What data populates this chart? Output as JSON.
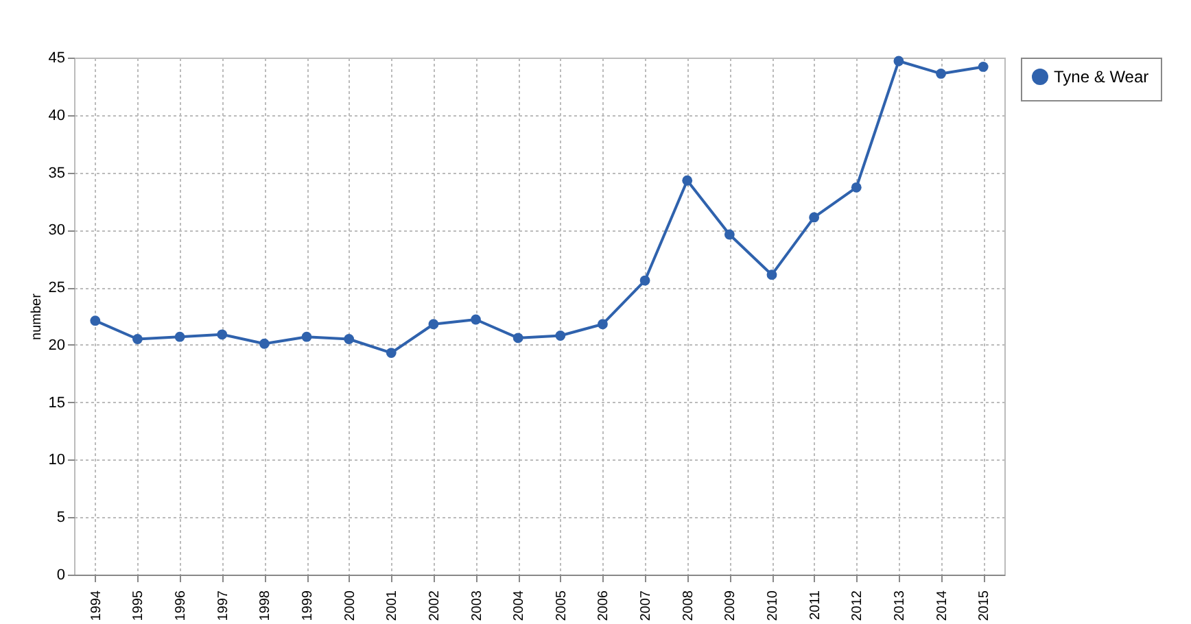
{
  "chart_data": {
    "type": "line",
    "ylabel": "number",
    "categories": [
      "1994",
      "1995",
      "1996",
      "1997",
      "1998",
      "1999",
      "2000",
      "2001",
      "2002",
      "2003",
      "2004",
      "2005",
      "2006",
      "2007",
      "2008",
      "2009",
      "2010",
      "2011",
      "2012",
      "2013",
      "2014",
      "2015"
    ],
    "series": [
      {
        "name": "Tyne & Wear",
        "color": "#2f62ad",
        "values": [
          22.1,
          20.5,
          20.7,
          20.9,
          20.1,
          20.7,
          20.5,
          19.3,
          21.8,
          22.2,
          20.6,
          20.8,
          21.8,
          25.6,
          34.3,
          29.6,
          26.1,
          31.1,
          33.7,
          44.7,
          43.6,
          44.2
        ]
      }
    ],
    "ylim": [
      0,
      45
    ],
    "yticks": [
      0,
      5,
      10,
      15,
      20,
      25,
      30,
      35,
      40,
      45
    ],
    "grid": true,
    "legend": "right",
    "marker": "circle",
    "line_style": "solid"
  }
}
